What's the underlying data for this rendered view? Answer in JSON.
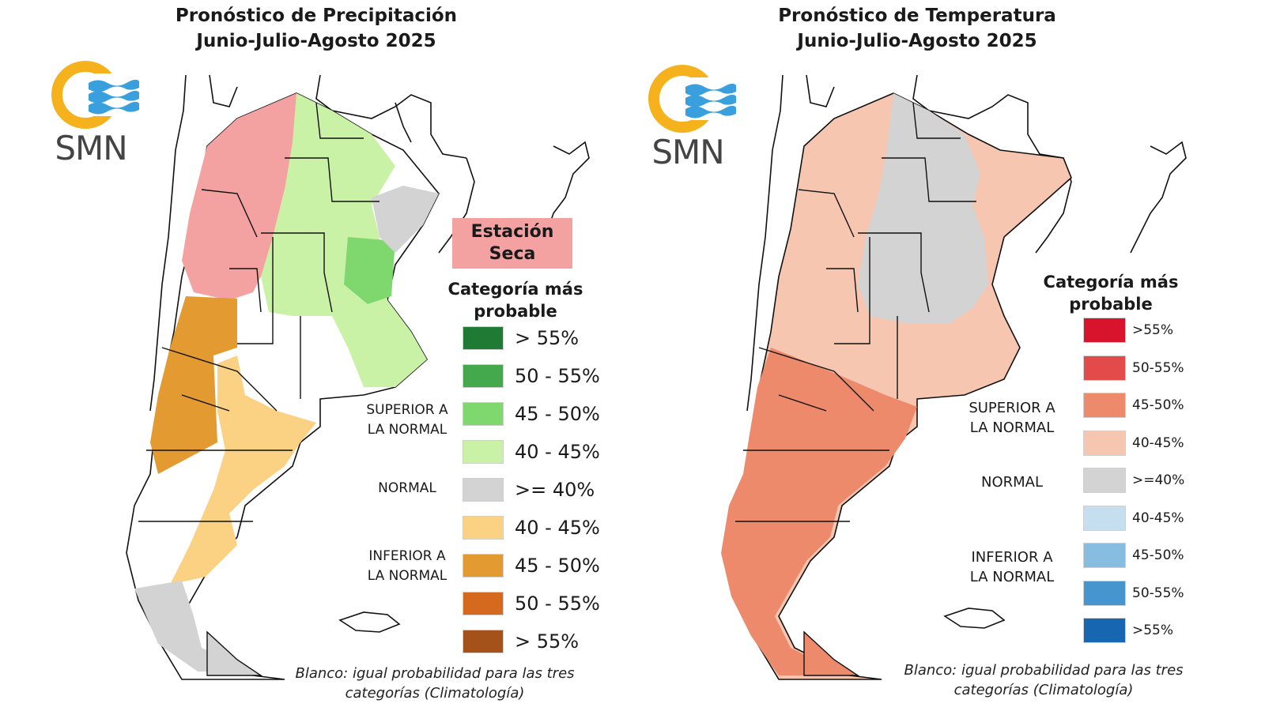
{
  "logo_text": "SMN",
  "colors": {
    "dry": "#f4a1a1",
    "normal": "#d3d3d3",
    "ocean_line": "#111111"
  },
  "precipitation": {
    "title_line1": "Pronóstico de Precipitación",
    "title_line2": "Junio-Julio-Agosto 2025",
    "station_label_line1": "Estación",
    "station_label_line2": "Seca",
    "legend_title_line1": "Categoría más",
    "legend_title_line2": "probable",
    "categories": {
      "above_line1": "SUPERIOR A",
      "above_line2": "LA NORMAL",
      "normal": "NORMAL",
      "below_line1": "INFERIOR A",
      "below_line2": "LA NORMAL"
    },
    "legend": [
      {
        "label": "> 55%",
        "color": "#1f7a33"
      },
      {
        "label": "50 - 55%",
        "color": "#43a94c"
      },
      {
        "label": "45 - 50%",
        "color": "#7fd86e"
      },
      {
        "label": "40 - 45%",
        "color": "#c9f2a7"
      },
      {
        "label": ">= 40%",
        "color": "#d3d3d3"
      },
      {
        "label": "40 - 45%",
        "color": "#fbd183"
      },
      {
        "label": "45 - 50%",
        "color": "#e39a31"
      },
      {
        "label": "50 - 55%",
        "color": "#d5691e"
      },
      {
        "label": "> 55%",
        "color": "#a5521a"
      }
    ],
    "note_line1": "Blanco: igual probabilidad para las tres",
    "note_line2": "categorías (Climatología)"
  },
  "temperature": {
    "title_line1": "Pronóstico de Temperatura",
    "title_line2": "Junio-Julio-Agosto 2025",
    "legend_title_line1": "Categoría más",
    "legend_title_line2": "probable",
    "categories": {
      "above_line1": "SUPERIOR A",
      "above_line2": "LA NORMAL",
      "normal": "NORMAL",
      "below_line1": "INFERIOR A",
      "below_line2": "LA NORMAL"
    },
    "legend": [
      {
        "label": ">55%",
        "color": "#d7142b"
      },
      {
        "label": "50-55%",
        "color": "#e34a4a"
      },
      {
        "label": "45-50%",
        "color": "#ee8a6c"
      },
      {
        "label": "40-45%",
        "color": "#f6c6b0"
      },
      {
        "label": ">=40%",
        "color": "#d3d3d3"
      },
      {
        "label": "40-45%",
        "color": "#c6dff0"
      },
      {
        "label": "45-50%",
        "color": "#88bde2"
      },
      {
        "label": "50-55%",
        "color": "#4795cf"
      },
      {
        "label": ">55%",
        "color": "#1766b1"
      }
    ],
    "note_line1": "Blanco: igual probabilidad para las tres",
    "note_line2": "categorías (Climatología)"
  }
}
